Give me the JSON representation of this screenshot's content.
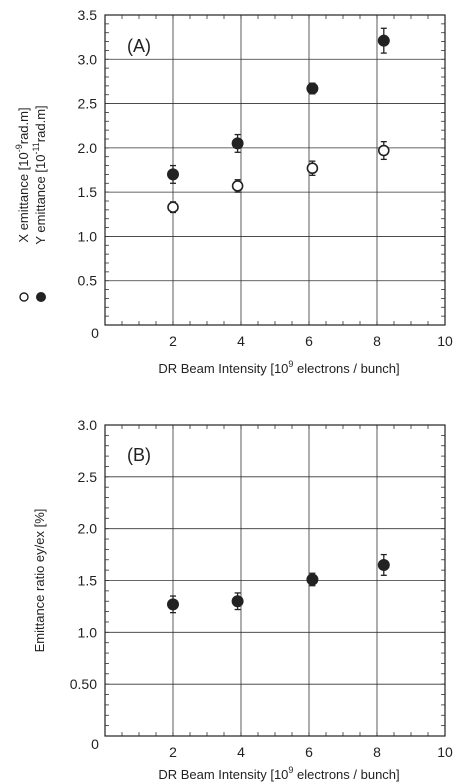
{
  "chart_data": [
    {
      "type": "scatter",
      "panel_label": "(A)",
      "xlabel": {
        "pre": "DR Beam Intensity [10",
        "sup": "9",
        "post": " electrons / bunch]"
      },
      "ylabel_lines": [
        {
          "marker": "open-circle",
          "pre": "X emittance [10",
          "sup": "-9",
          "post": "rad.m]"
        },
        {
          "marker": "filled-circle",
          "pre": "Y emittance [10",
          "sup": "-11",
          "post": "rad.m]"
        }
      ],
      "xlim": [
        0,
        10
      ],
      "ylim": [
        0,
        3.5
      ],
      "x_ticks": [
        "0",
        "2",
        "4",
        "6",
        "8",
        "10"
      ],
      "y_ticks": [
        "0",
        "0.5",
        "1.0",
        "1.5",
        "2.0",
        "2.5",
        "3.0",
        "3.5"
      ],
      "grid": true,
      "series": [
        {
          "marker": "open-circle",
          "x": [
            2.0,
            3.9,
            6.1,
            8.2
          ],
          "y": [
            1.33,
            1.57,
            1.77,
            1.97
          ],
          "yerr": [
            0.06,
            0.07,
            0.08,
            0.1
          ],
          "xerr": [
            0.05,
            0.08,
            0.15,
            0.15
          ]
        },
        {
          "marker": "filled-circle",
          "x": [
            2.0,
            3.9,
            6.1,
            8.2
          ],
          "y": [
            1.7,
            2.05,
            2.67,
            3.21
          ],
          "yerr": [
            0.1,
            0.1,
            0.06,
            0.14
          ],
          "xerr": [
            0.05,
            0.08,
            0.15,
            0.15
          ]
        }
      ]
    },
    {
      "type": "scatter",
      "panel_label": "(B)",
      "xlabel": {
        "pre": "DR Beam Intensity [10",
        "sup": "9",
        "post": " electrons / bunch]"
      },
      "ylabel": "Emittance ratio  ey/ex  [%]",
      "xlim": [
        0,
        10
      ],
      "ylim": [
        0,
        3.0
      ],
      "x_ticks": [
        "0",
        "2",
        "4",
        "6",
        "8",
        "10"
      ],
      "y_ticks": [
        "0",
        "0.50",
        "1.0",
        "1.5",
        "2.0",
        "2.5",
        "3.0"
      ],
      "grid": true,
      "series": [
        {
          "marker": "filled-circle",
          "x": [
            2.0,
            3.9,
            6.1,
            8.2
          ],
          "y": [
            1.27,
            1.3,
            1.51,
            1.65
          ],
          "yerr": [
            0.08,
            0.08,
            0.06,
            0.1
          ],
          "xerr": [
            0.05,
            0.08,
            0.15,
            0.15
          ]
        }
      ]
    }
  ]
}
